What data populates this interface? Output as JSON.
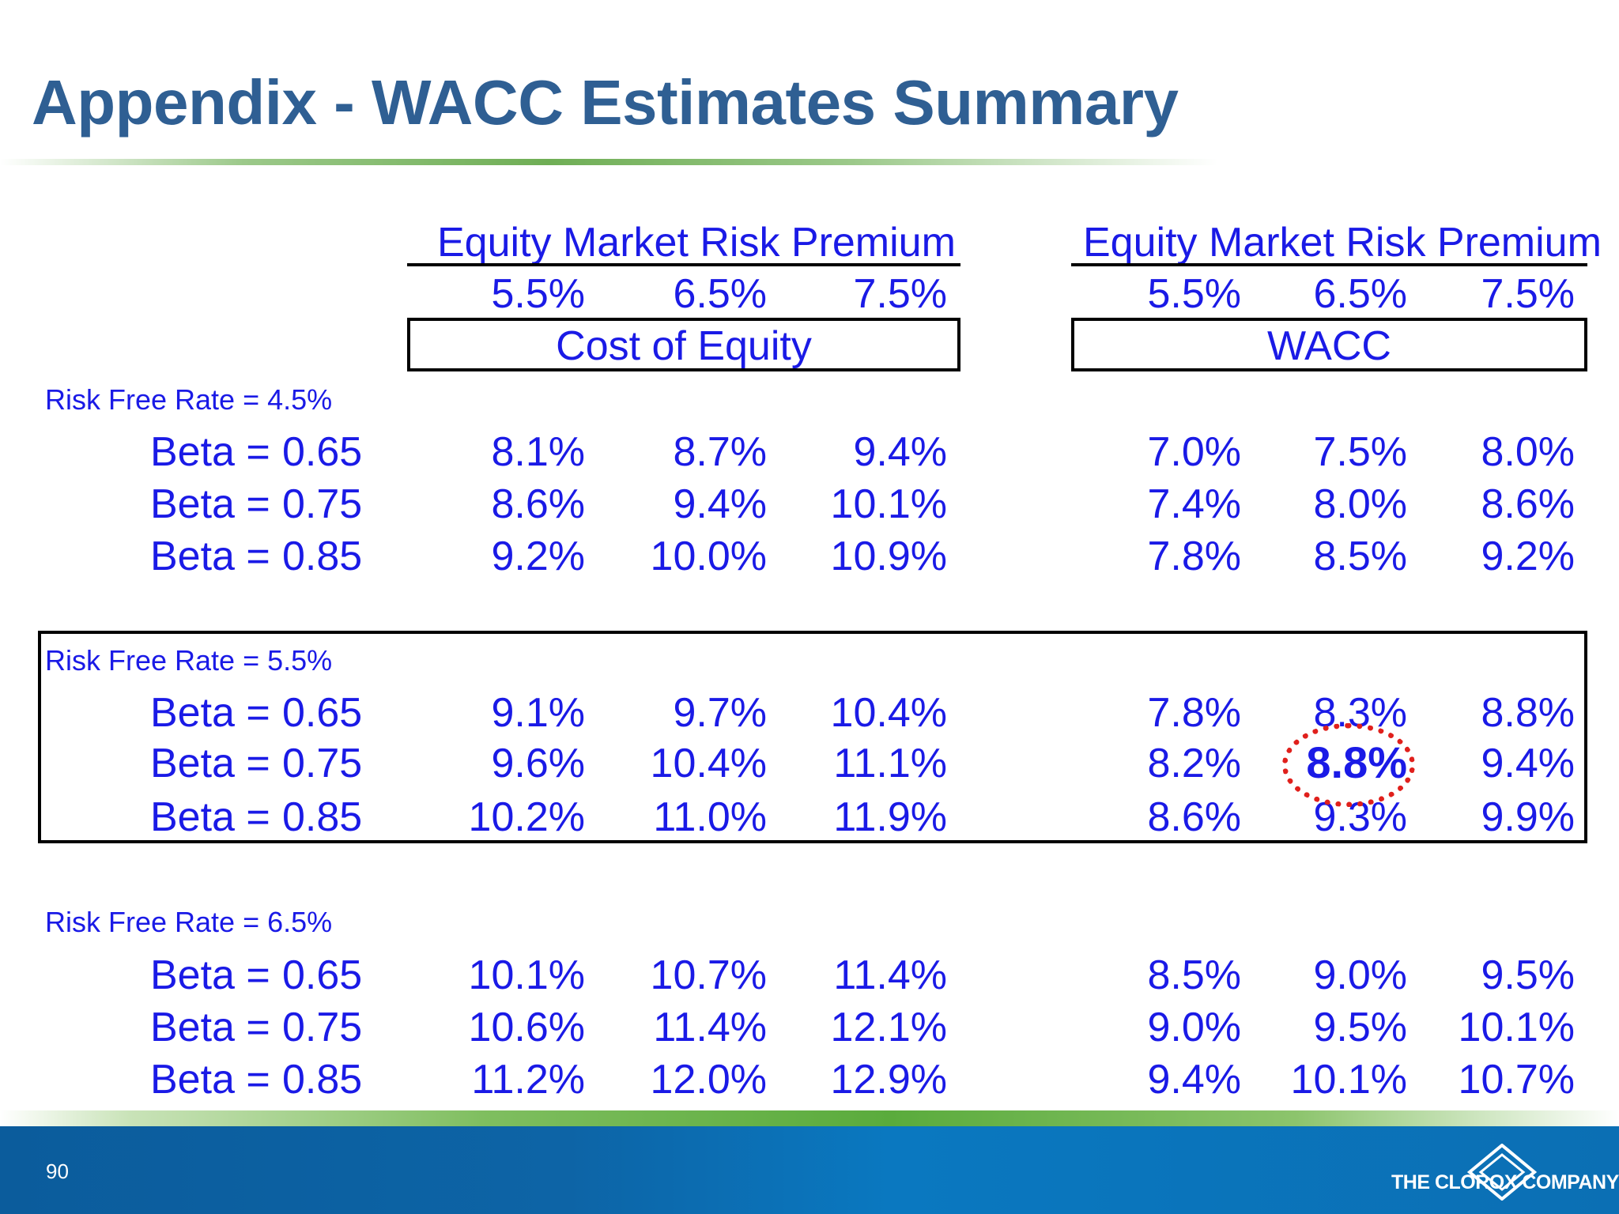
{
  "title": "Appendix - WACC Estimates Summary",
  "left_panel": {
    "header": "Equity Market Risk Premium",
    "premiums": [
      "5.5%",
      "6.5%",
      "7.5%"
    ],
    "box_label": "Cost of Equity"
  },
  "right_panel": {
    "header": "Equity Market Risk Premium",
    "premiums": [
      "5.5%",
      "6.5%",
      "7.5%"
    ],
    "box_label": "WACC"
  },
  "groups": [
    {
      "risk_free_label": "Risk Free Rate = 4.5%",
      "rows": [
        {
          "beta_label": "Beta =",
          "beta_value": "0.65",
          "cost_of_equity": [
            "8.1%",
            "8.7%",
            "9.4%"
          ],
          "wacc": [
            "7.0%",
            "7.5%",
            "8.0%"
          ]
        },
        {
          "beta_label": "Beta =",
          "beta_value": "0.75",
          "cost_of_equity": [
            "8.6%",
            "9.4%",
            "10.1%"
          ],
          "wacc": [
            "7.4%",
            "8.0%",
            "8.6%"
          ]
        },
        {
          "beta_label": "Beta =",
          "beta_value": "0.85",
          "cost_of_equity": [
            "9.2%",
            "10.0%",
            "10.9%"
          ],
          "wacc": [
            "7.8%",
            "8.5%",
            "9.2%"
          ]
        }
      ]
    },
    {
      "risk_free_label": "Risk Free Rate = 5.5%",
      "rows": [
        {
          "beta_label": "Beta =",
          "beta_value": "0.65",
          "cost_of_equity": [
            "9.1%",
            "9.7%",
            "10.4%"
          ],
          "wacc": [
            "7.8%",
            "8.3%",
            "8.8%"
          ]
        },
        {
          "beta_label": "Beta =",
          "beta_value": "0.75",
          "cost_of_equity": [
            "9.6%",
            "10.4%",
            "11.1%"
          ],
          "wacc": [
            "8.2%",
            "8.8%",
            "9.4%"
          ]
        },
        {
          "beta_label": "Beta =",
          "beta_value": "0.85",
          "cost_of_equity": [
            "10.2%",
            "11.0%",
            "11.9%"
          ],
          "wacc": [
            "8.6%",
            "9.3%",
            "9.9%"
          ]
        }
      ]
    },
    {
      "risk_free_label": "Risk Free Rate = 6.5%",
      "rows": [
        {
          "beta_label": "Beta =",
          "beta_value": "0.65",
          "cost_of_equity": [
            "10.1%",
            "10.7%",
            "11.4%"
          ],
          "wacc": [
            "8.5%",
            "9.0%",
            "9.5%"
          ]
        },
        {
          "beta_label": "Beta =",
          "beta_value": "0.75",
          "cost_of_equity": [
            "10.6%",
            "11.4%",
            "12.1%"
          ],
          "wacc": [
            "9.0%",
            "9.5%",
            "10.1%"
          ]
        },
        {
          "beta_label": "Beta =",
          "beta_value": "0.85",
          "cost_of_equity": [
            "11.2%",
            "12.0%",
            "12.9%"
          ],
          "wacc": [
            "9.4%",
            "10.1%",
            "10.7%"
          ]
        }
      ]
    }
  ],
  "footer": {
    "page_number": "90",
    "company": "THE CLOROX COMPANY"
  }
}
